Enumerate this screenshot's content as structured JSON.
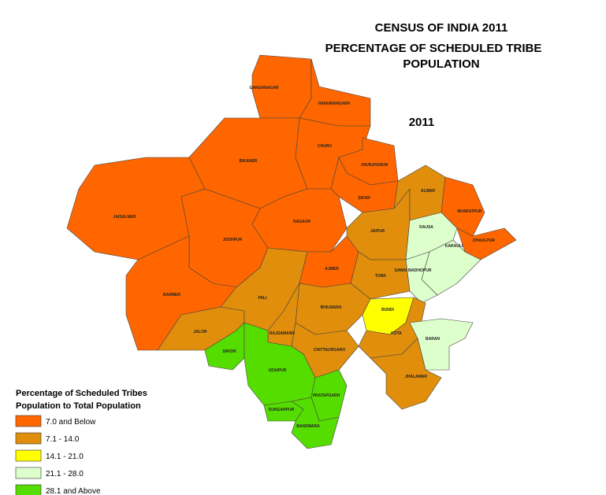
{
  "title_lines": [
    "CENSUS OF INDIA 2011",
    "PERCENTAGE OF SCHEDULED TRIBE",
    "POPULATION"
  ],
  "year": "2011",
  "legend": {
    "title_lines": [
      "Percentage of Scheduled Tribes",
      "Population to Total Population"
    ],
    "items": [
      {
        "label": "7.0 and Below",
        "color": "#ff6600"
      },
      {
        "label": "7.1 - 14.0",
        "color": "#e08e0b"
      },
      {
        "label": "14.1 - 21.0",
        "color": "#ffff00"
      },
      {
        "label": "21.1 - 28.0",
        "color": "#ddffcc"
      },
      {
        "label": "28.1 and Above",
        "color": "#55dd00"
      }
    ]
  },
  "districts": [
    {
      "name": "GANGANAGAR",
      "color": "#ff6600"
    },
    {
      "name": "HANUMANGARH",
      "color": "#ff6600"
    },
    {
      "name": "BIKANER",
      "color": "#ff6600"
    },
    {
      "name": "CHURU",
      "color": "#ff6600"
    },
    {
      "name": "JHUNJHUNUN",
      "color": "#ff6600"
    },
    {
      "name": "SIKAR",
      "color": "#ff6600"
    },
    {
      "name": "JAISALMER",
      "color": "#ff6600"
    },
    {
      "name": "NAGAUR",
      "color": "#ff6600"
    },
    {
      "name": "JODHPUR",
      "color": "#ff6600"
    },
    {
      "name": "BARMER",
      "color": "#ff6600"
    },
    {
      "name": "JALOR",
      "color": "#e08e0b"
    },
    {
      "name": "PALI",
      "color": "#e08e0b"
    },
    {
      "name": "AJMER",
      "color": "#ff6600"
    },
    {
      "name": "JAIPUR",
      "color": "#e08e0b"
    },
    {
      "name": "ALWAR",
      "color": "#e08e0b"
    },
    {
      "name": "BHARATPUR",
      "color": "#ff6600"
    },
    {
      "name": "DHAULPUR",
      "color": "#ff6600"
    },
    {
      "name": "DAUSA",
      "color": "#ddffcc"
    },
    {
      "name": "KARAULI",
      "color": "#ddffcc"
    },
    {
      "name": "SAWAI MADHOPUR",
      "color": "#ddffcc"
    },
    {
      "name": "TONK",
      "color": "#e08e0b"
    },
    {
      "name": "BHILWARA",
      "color": "#e08e0b"
    },
    {
      "name": "RAJSAMAND",
      "color": "#e08e0b"
    },
    {
      "name": "BUNDI",
      "color": "#ffff00"
    },
    {
      "name": "KOTA",
      "color": "#e08e0b"
    },
    {
      "name": "BARAN",
      "color": "#ddffcc"
    },
    {
      "name": "JHALAWAR",
      "color": "#e08e0b"
    },
    {
      "name": "CHITTAURGARH",
      "color": "#e08e0b"
    },
    {
      "name": "SIROHI",
      "color": "#55dd00"
    },
    {
      "name": "UDAIPUR",
      "color": "#55dd00"
    },
    {
      "name": "PRATAPGARH",
      "color": "#55dd00"
    },
    {
      "name": "DUNGARPUR",
      "color": "#55dd00"
    },
    {
      "name": "BANSWARA",
      "color": "#55dd00"
    }
  ]
}
